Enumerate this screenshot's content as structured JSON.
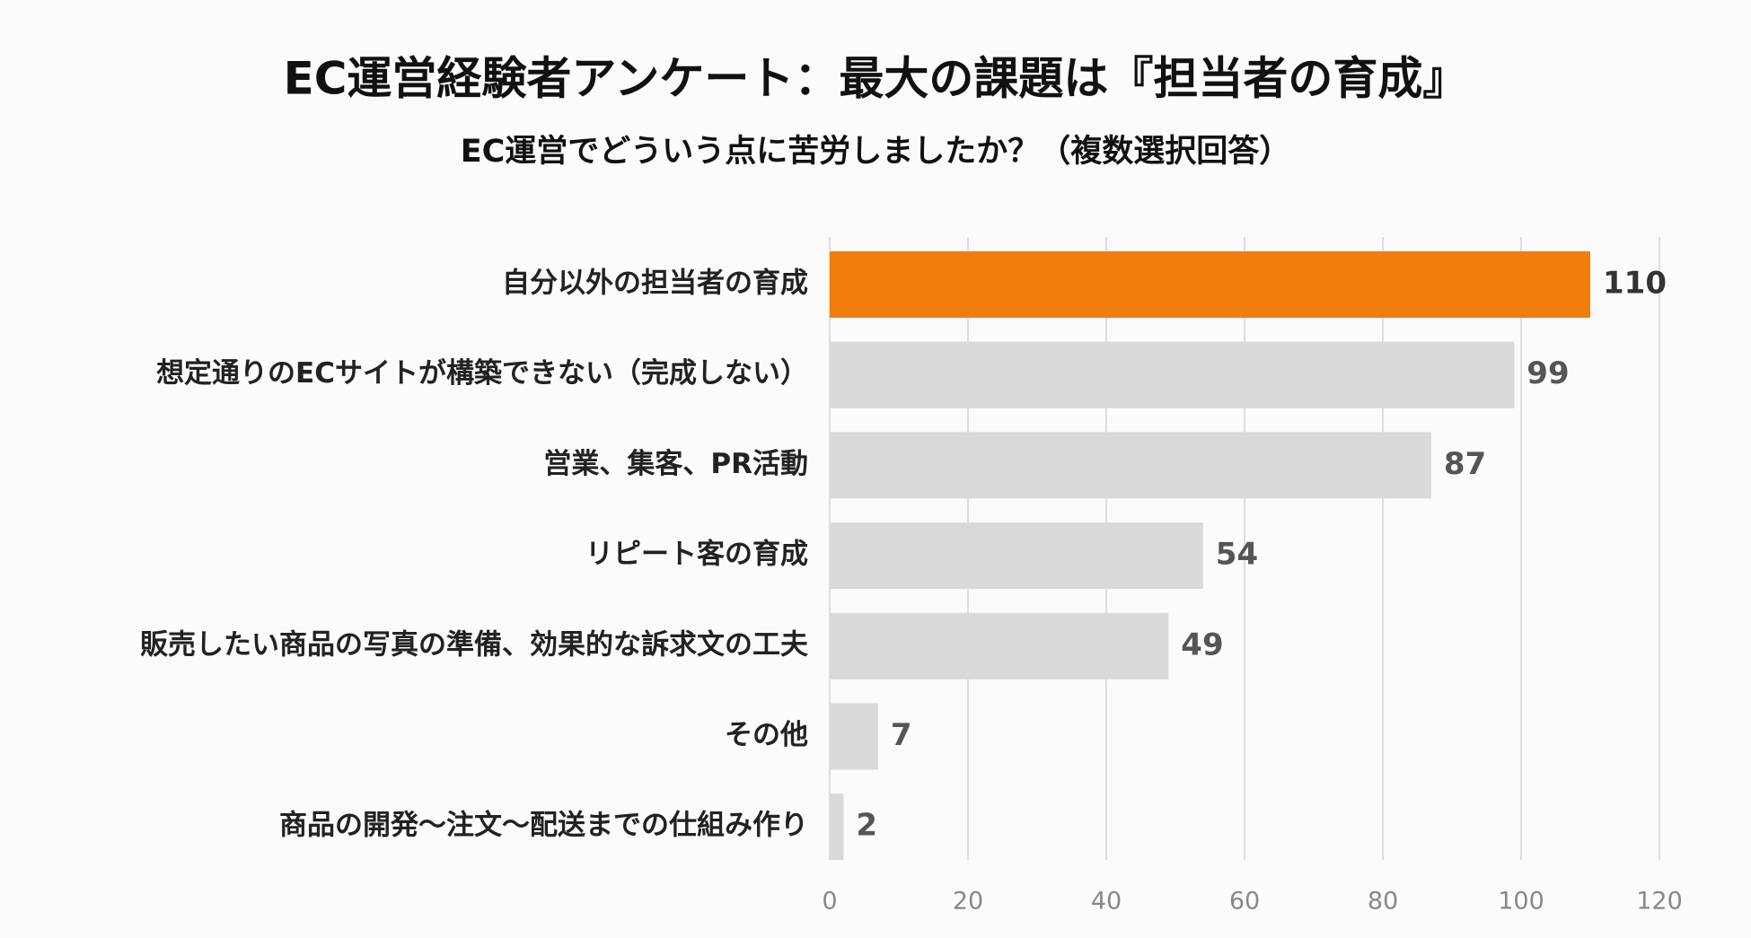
{
  "chart_data": {
    "type": "barh",
    "title": "EC運営経験者アンケート：最大の課題は『担当者の育成』",
    "subtitle": "EC運営でどういう点に苦労しましたか？（複数選択回答）",
    "categories": [
      "自分以外の担当者の育成",
      "想定通りのECサイトが構築できない（完成しない）",
      "営業、集客、PR活動",
      "リピート客の育成",
      "販売したい商品の写真の準備、効果的な訴求文の工夫",
      "その他",
      "商品の開発〜注文〜配送までの仕組み作り"
    ],
    "values": [
      110,
      99,
      87,
      54,
      49,
      7,
      2
    ],
    "colors": [
      "#f27d0c",
      "#d9d9d9",
      "#d9d9d9",
      "#d9d9d9",
      "#d9d9d9",
      "#d9d9d9",
      "#d9d9d9"
    ],
    "xlim": [
      0,
      120
    ],
    "xticks": [
      0,
      20,
      40,
      60,
      80,
      100,
      120
    ],
    "grid": true
  }
}
